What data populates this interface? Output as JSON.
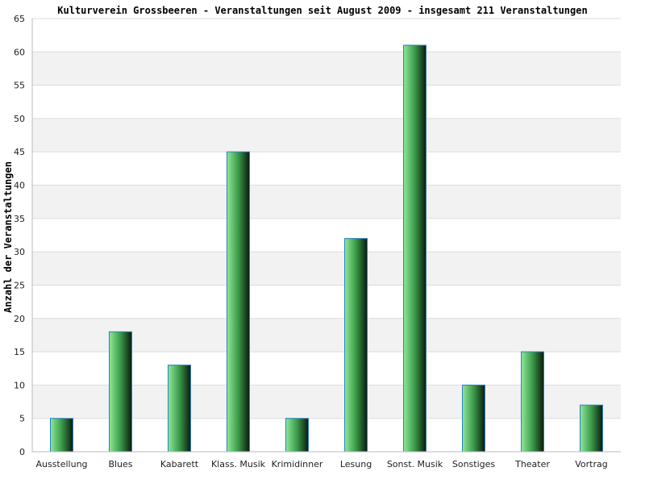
{
  "chart_data": {
    "type": "bar",
    "title": "Kulturverein Grossbeeren - Veranstaltungen seit August 2009 - insgesamt 211 Veranstaltungen",
    "xlabel": "",
    "ylabel": "Anzahl der Veranstaltungen",
    "categories": [
      "Ausstellung",
      "Blues",
      "Kabarett",
      "Klass. Musik",
      "Krimidinner",
      "Lesung",
      "Sonst. Musik",
      "Sonstiges",
      "Theater",
      "Vortrag"
    ],
    "values": [
      5,
      18,
      13,
      45,
      5,
      32,
      61,
      10,
      15,
      7
    ],
    "ylim": [
      0,
      65
    ],
    "yticks": [
      0,
      5,
      10,
      15,
      20,
      25,
      30,
      35,
      40,
      45,
      50,
      55,
      60,
      65
    ],
    "grid": true,
    "legend": "none",
    "colors": {
      "bar_light": "#90e89a",
      "bar_mid": "#3a9a48",
      "bar_dark": "#0a1a0e",
      "bar_outline": "#2a7fc0",
      "band": "#f2f2f2",
      "gridline": "#dcdcdc",
      "axis": "#bbbbbb"
    }
  }
}
